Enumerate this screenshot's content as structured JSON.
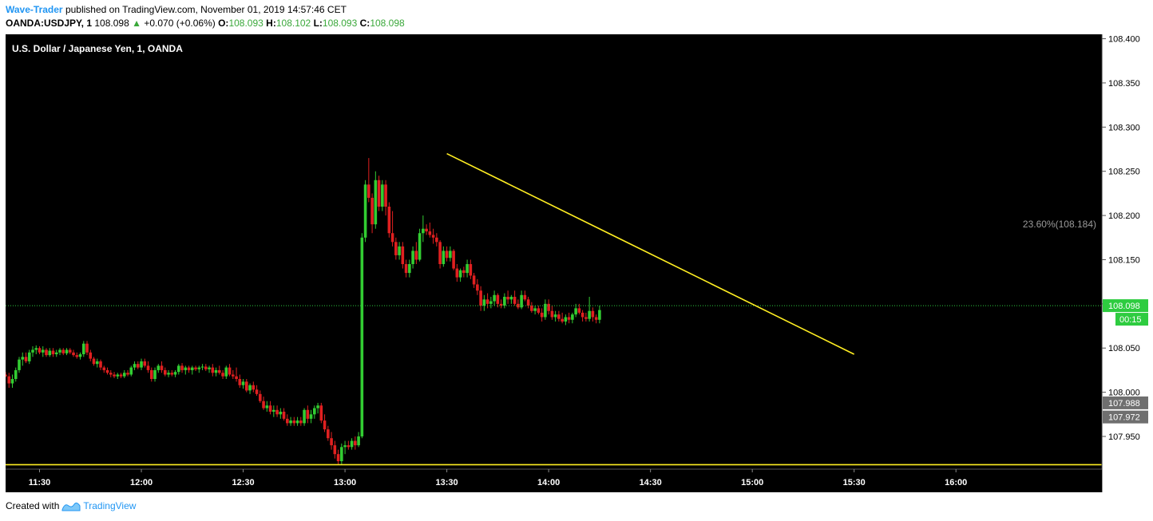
{
  "header": {
    "author": "Wave-Trader",
    "published_text": "published on TradingView.com, November 01, 2019 14:57:46 CET",
    "symbol": "OANDA:USDJPY, 1",
    "last": "108.098",
    "change": "+0.070 (+0.06%)",
    "o_label": "O:",
    "o": "108.093",
    "h_label": "H:",
    "h": "108.102",
    "l_label": "L:",
    "l": "108.093",
    "c_label": "C:",
    "c": "108.098"
  },
  "footer": {
    "created_with": "Created with",
    "brand": "TradingView"
  },
  "colors": {
    "background": "#000000",
    "up": "#32cd32",
    "down": "#e02020",
    "trendline": "#ffee22",
    "price_line": "#2ecc40",
    "axis_text": "#ffffff"
  },
  "chart_data": {
    "type": "candlestick",
    "title": "U.S. Dollar / Japanese Yen, 1, OANDA",
    "ylim": [
      107.913,
      108.405
    ],
    "y_ticks": [
      "108.400",
      "108.350",
      "108.300",
      "108.250",
      "108.200",
      "108.150",
      "108.100",
      "108.050",
      "108.000",
      "107.950"
    ],
    "x_range": [
      "11:20",
      "16:43"
    ],
    "x_ticks": [
      "11:30",
      "12:00",
      "12:30",
      "13:00",
      "13:30",
      "14:00",
      "14:30",
      "15:00",
      "15:30",
      "16:00"
    ],
    "price_label": {
      "value": "108.098",
      "countdown": "00:15"
    },
    "side_labels": [
      "107.988",
      "107.972"
    ],
    "fib_label": "23.60%(108.184)",
    "trendline": {
      "from": [
        "13:30",
        108.27
      ],
      "to": [
        "15:30",
        108.043
      ]
    },
    "horizontal_line": 107.918,
    "candles": [
      [
        "11:20",
        108.02,
        108.023,
        108.017,
        108.018
      ],
      [
        "11:21",
        108.018,
        108.022,
        108.005,
        108.01
      ],
      [
        "11:22",
        108.01,
        108.02,
        108.005,
        108.015
      ],
      [
        "11:23",
        108.015,
        108.028,
        108.012,
        108.025
      ],
      [
        "11:24",
        108.025,
        108.04,
        108.022,
        108.037
      ],
      [
        "11:25",
        108.037,
        108.045,
        108.03,
        108.04
      ],
      [
        "11:26",
        108.04,
        108.045,
        108.033,
        108.035
      ],
      [
        "11:27",
        108.035,
        108.048,
        108.032,
        108.045
      ],
      [
        "11:28",
        108.045,
        108.052,
        108.04,
        108.048
      ],
      [
        "11:29",
        108.048,
        108.053,
        108.043,
        108.05
      ],
      [
        "11:30",
        108.05,
        108.052,
        108.043,
        108.045
      ],
      [
        "11:31",
        108.045,
        108.052,
        108.04,
        108.048
      ],
      [
        "11:32",
        108.048,
        108.05,
        108.04,
        108.042
      ],
      [
        "11:33",
        108.042,
        108.05,
        108.04,
        108.047
      ],
      [
        "11:34",
        108.047,
        108.05,
        108.04,
        108.043
      ],
      [
        "11:35",
        108.043,
        108.048,
        108.04,
        108.045
      ],
      [
        "11:36",
        108.045,
        108.05,
        108.042,
        108.048
      ],
      [
        "11:37",
        108.048,
        108.05,
        108.042,
        108.044
      ],
      [
        "11:38",
        108.044,
        108.05,
        108.042,
        108.048
      ],
      [
        "11:39",
        108.048,
        108.05,
        108.043,
        108.045
      ],
      [
        "11:40",
        108.045,
        108.048,
        108.04,
        108.042
      ],
      [
        "11:41",
        108.042,
        108.045,
        108.038,
        108.04
      ],
      [
        "11:42",
        108.04,
        108.045,
        108.037,
        108.043
      ],
      [
        "11:43",
        108.043,
        108.058,
        108.04,
        108.055
      ],
      [
        "11:44",
        108.055,
        108.058,
        108.042,
        108.045
      ],
      [
        "11:45",
        108.045,
        108.048,
        108.035,
        108.038
      ],
      [
        "11:46",
        108.038,
        108.04,
        108.03,
        108.032
      ],
      [
        "11:47",
        108.032,
        108.038,
        108.028,
        108.035
      ],
      [
        "11:48",
        108.035,
        108.037,
        108.025,
        108.028
      ],
      [
        "11:49",
        108.028,
        108.03,
        108.022,
        108.025
      ],
      [
        "11:50",
        108.025,
        108.028,
        108.02,
        108.022
      ],
      [
        "11:51",
        108.022,
        108.025,
        108.017,
        108.02
      ],
      [
        "11:52",
        108.02,
        108.023,
        108.016,
        108.018
      ],
      [
        "11:53",
        108.018,
        108.022,
        108.015,
        108.02
      ],
      [
        "11:54",
        108.02,
        108.022,
        108.016,
        108.018
      ],
      [
        "11:55",
        108.018,
        108.025,
        108.016,
        108.022
      ],
      [
        "11:56",
        108.022,
        108.025,
        108.018,
        108.02
      ],
      [
        "11:57",
        108.02,
        108.03,
        108.018,
        108.028
      ],
      [
        "11:58",
        108.028,
        108.035,
        108.025,
        108.032
      ],
      [
        "11:59",
        108.032,
        108.035,
        108.026,
        108.028
      ],
      [
        "12:00",
        108.028,
        108.038,
        108.025,
        108.035
      ],
      [
        "12:01",
        108.035,
        108.038,
        108.028,
        108.03
      ],
      [
        "12:02",
        108.03,
        108.035,
        108.022,
        108.025
      ],
      [
        "12:03",
        108.025,
        108.028,
        108.012,
        108.015
      ],
      [
        "12:04",
        108.015,
        108.028,
        108.012,
        108.025
      ],
      [
        "12:05",
        108.025,
        108.032,
        108.022,
        108.03
      ],
      [
        "12:06",
        108.03,
        108.035,
        108.022,
        108.025
      ],
      [
        "12:07",
        108.025,
        108.028,
        108.018,
        108.02
      ],
      [
        "12:08",
        108.02,
        108.025,
        108.017,
        108.022
      ],
      [
        "12:09",
        108.022,
        108.025,
        108.018,
        108.02
      ],
      [
        "12:10",
        108.02,
        108.025,
        108.017,
        108.023
      ],
      [
        "12:11",
        108.023,
        108.032,
        108.02,
        108.03
      ],
      [
        "12:12",
        108.03,
        108.033,
        108.022,
        108.025
      ],
      [
        "12:13",
        108.025,
        108.03,
        108.02,
        108.028
      ],
      [
        "12:14",
        108.028,
        108.03,
        108.022,
        108.025
      ],
      [
        "12:15",
        108.025,
        108.03,
        108.02,
        108.028
      ],
      [
        "12:16",
        108.028,
        108.03,
        108.024,
        108.026
      ],
      [
        "12:17",
        108.026,
        108.03,
        108.022,
        108.028
      ],
      [
        "12:18",
        108.028,
        108.032,
        108.025,
        108.029
      ],
      [
        "12:19",
        108.029,
        108.032,
        108.024,
        108.026
      ],
      [
        "12:20",
        108.026,
        108.03,
        108.022,
        108.028
      ],
      [
        "12:21",
        108.028,
        108.032,
        108.018,
        108.022
      ],
      [
        "12:22",
        108.022,
        108.028,
        108.018,
        108.025
      ],
      [
        "12:23",
        108.025,
        108.03,
        108.02,
        108.022
      ],
      [
        "12:24",
        108.022,
        108.025,
        108.015,
        108.018
      ],
      [
        "12:25",
        108.018,
        108.03,
        108.015,
        108.028
      ],
      [
        "12:26",
        108.028,
        108.032,
        108.018,
        108.02
      ],
      [
        "12:27",
        108.02,
        108.025,
        108.015,
        108.018
      ],
      [
        "12:28",
        108.018,
        108.028,
        108.012,
        108.015
      ],
      [
        "12:29",
        108.015,
        108.02,
        108.005,
        108.008
      ],
      [
        "12:30",
        108.008,
        108.015,
        108.004,
        108.012
      ],
      [
        "12:31",
        108.012,
        108.015,
        108.0,
        108.002
      ],
      [
        "12:32",
        108.002,
        108.01,
        107.998,
        108.008
      ],
      [
        "12:33",
        108.008,
        108.012,
        108.0,
        108.003
      ],
      [
        "12:34",
        108.003,
        108.008,
        107.996,
        107.998
      ],
      [
        "12:35",
        107.998,
        108.002,
        107.988,
        107.99
      ],
      [
        "12:36",
        107.99,
        107.995,
        107.98,
        107.982
      ],
      [
        "12:37",
        107.982,
        107.99,
        107.978,
        107.985
      ],
      [
        "12:38",
        107.985,
        107.99,
        107.975,
        107.978
      ],
      [
        "12:39",
        107.978,
        107.985,
        107.972,
        107.98
      ],
      [
        "12:40",
        107.98,
        107.985,
        107.972,
        107.975
      ],
      [
        "12:41",
        107.975,
        107.982,
        107.97,
        107.978
      ],
      [
        "12:42",
        107.978,
        107.982,
        107.968,
        107.97
      ],
      [
        "12:43",
        107.97,
        107.975,
        107.962,
        107.965
      ],
      [
        "12:44",
        107.965,
        107.972,
        107.962,
        107.968
      ],
      [
        "12:45",
        107.968,
        107.972,
        107.962,
        107.965
      ],
      [
        "12:46",
        107.965,
        107.972,
        107.962,
        107.968
      ],
      [
        "12:47",
        107.968,
        107.972,
        107.962,
        107.965
      ],
      [
        "12:48",
        107.965,
        107.982,
        107.962,
        107.98
      ],
      [
        "12:49",
        107.98,
        107.985,
        107.965,
        107.97
      ],
      [
        "12:50",
        107.97,
        107.98,
        107.965,
        107.975
      ],
      [
        "12:51",
        107.975,
        107.985,
        107.97,
        107.982
      ],
      [
        "12:52",
        107.982,
        107.988,
        107.976,
        107.985
      ],
      [
        "12:53",
        107.985,
        107.988,
        107.965,
        107.968
      ],
      [
        "12:54",
        107.968,
        107.975,
        107.955,
        107.958
      ],
      [
        "12:55",
        107.958,
        107.962,
        107.945,
        107.948
      ],
      [
        "12:56",
        107.948,
        107.955,
        107.935,
        107.94
      ],
      [
        "12:57",
        107.94,
        107.945,
        107.925,
        107.93
      ],
      [
        "12:58",
        107.93,
        107.935,
        107.918,
        107.922
      ],
      [
        "12:59",
        107.922,
        107.942,
        107.918,
        107.938
      ],
      [
        "13:00",
        107.938,
        107.945,
        107.93,
        107.94
      ],
      [
        "13:01",
        107.94,
        107.945,
        107.935,
        107.938
      ],
      [
        "13:02",
        107.938,
        107.948,
        107.935,
        107.945
      ],
      [
        "13:03",
        107.945,
        107.95,
        107.935,
        107.94
      ],
      [
        "13:04",
        107.94,
        107.955,
        107.938,
        107.95
      ],
      [
        "13:05",
        107.95,
        108.18,
        107.948,
        108.175
      ],
      [
        "13:06",
        108.175,
        108.24,
        108.17,
        108.235
      ],
      [
        "13:07",
        108.235,
        108.265,
        108.215,
        108.22
      ],
      [
        "13:08",
        108.22,
        108.225,
        108.18,
        108.19
      ],
      [
        "13:09",
        108.19,
        108.25,
        108.185,
        108.24
      ],
      [
        "13:10",
        108.24,
        108.245,
        108.205,
        108.21
      ],
      [
        "13:11",
        108.21,
        108.24,
        108.205,
        108.235
      ],
      [
        "13:12",
        108.235,
        108.24,
        108.2,
        108.21
      ],
      [
        "13:13",
        108.21,
        108.215,
        108.175,
        108.18
      ],
      [
        "13:14",
        108.18,
        108.205,
        108.165,
        108.17
      ],
      [
        "13:15",
        108.17,
        108.175,
        108.15,
        108.155
      ],
      [
        "13:16",
        108.155,
        108.17,
        108.15,
        108.165
      ],
      [
        "13:17",
        108.165,
        108.17,
        108.14,
        108.145
      ],
      [
        "13:18",
        108.145,
        108.15,
        108.13,
        108.135
      ],
      [
        "13:19",
        108.135,
        108.15,
        108.13,
        108.145
      ],
      [
        "13:20",
        108.145,
        108.165,
        108.14,
        108.16
      ],
      [
        "13:21",
        108.16,
        108.17,
        108.145,
        108.15
      ],
      [
        "13:22",
        108.15,
        108.185,
        108.148,
        108.18
      ],
      [
        "13:23",
        108.18,
        108.2,
        108.17,
        108.185
      ],
      [
        "13:24",
        108.185,
        108.19,
        108.178,
        108.182
      ],
      [
        "13:25",
        108.182,
        108.192,
        108.175,
        108.178
      ],
      [
        "13:26",
        108.178,
        108.185,
        108.168,
        108.175
      ],
      [
        "13:27",
        108.175,
        108.18,
        108.165,
        108.17
      ],
      [
        "13:28",
        108.17,
        108.172,
        108.14,
        108.145
      ],
      [
        "13:29",
        108.145,
        108.165,
        108.142,
        108.16
      ],
      [
        "13:30",
        108.16,
        108.165,
        108.148,
        108.152
      ],
      [
        "13:31",
        108.152,
        108.165,
        108.148,
        108.16
      ],
      [
        "13:32",
        108.16,
        108.162,
        108.138,
        108.14
      ],
      [
        "13:33",
        108.14,
        108.145,
        108.125,
        108.13
      ],
      [
        "13:34",
        108.13,
        108.14,
        108.125,
        108.138
      ],
      [
        "13:35",
        108.138,
        108.142,
        108.13,
        108.135
      ],
      [
        "13:36",
        108.135,
        108.15,
        108.13,
        108.145
      ],
      [
        "13:37",
        108.145,
        108.15,
        108.128,
        108.132
      ],
      [
        "13:38",
        108.132,
        108.135,
        108.118,
        108.122
      ],
      [
        "13:39",
        108.122,
        108.128,
        108.11,
        108.115
      ],
      [
        "13:40",
        108.115,
        108.12,
        108.092,
        108.098
      ],
      [
        "13:41",
        108.098,
        108.11,
        108.092,
        108.105
      ],
      [
        "13:42",
        108.105,
        108.112,
        108.095,
        108.1
      ],
      [
        "13:43",
        108.1,
        108.108,
        108.095,
        108.103
      ],
      [
        "13:44",
        108.103,
        108.115,
        108.098,
        108.11
      ],
      [
        "13:45",
        108.11,
        108.112,
        108.096,
        108.1
      ],
      [
        "13:46",
        108.1,
        108.105,
        108.095,
        108.098
      ],
      [
        "13:47",
        108.098,
        108.112,
        108.095,
        108.108
      ],
      [
        "13:48",
        108.108,
        108.115,
        108.1,
        108.105
      ],
      [
        "13:49",
        108.105,
        108.11,
        108.1,
        108.108
      ],
      [
        "13:50",
        108.108,
        108.115,
        108.098,
        108.1
      ],
      [
        "13:51",
        108.1,
        108.105,
        108.094,
        108.096
      ],
      [
        "13:52",
        108.096,
        108.115,
        108.094,
        108.11
      ],
      [
        "13:53",
        108.11,
        108.115,
        108.103,
        108.105
      ],
      [
        "13:54",
        108.105,
        108.108,
        108.095,
        108.098
      ],
      [
        "13:55",
        108.098,
        108.102,
        108.09,
        108.092
      ],
      [
        "13:56",
        108.092,
        108.098,
        108.088,
        108.095
      ],
      [
        "13:57",
        108.095,
        108.098,
        108.088,
        108.09
      ],
      [
        "13:58",
        108.09,
        108.095,
        108.08,
        108.085
      ],
      [
        "13:59",
        108.085,
        108.105,
        108.082,
        108.1
      ],
      [
        "14:00",
        108.1,
        108.105,
        108.088,
        108.092
      ],
      [
        "14:01",
        108.092,
        108.098,
        108.082,
        108.085
      ],
      [
        "14:02",
        108.085,
        108.092,
        108.08,
        108.088
      ],
      [
        "14:03",
        108.088,
        108.092,
        108.08,
        108.083
      ],
      [
        "14:04",
        108.083,
        108.09,
        108.078,
        108.08
      ],
      [
        "14:05",
        108.08,
        108.088,
        108.076,
        108.085
      ],
      [
        "14:06",
        108.085,
        108.09,
        108.078,
        108.082
      ],
      [
        "14:07",
        108.082,
        108.09,
        108.078,
        108.088
      ],
      [
        "14:08",
        108.088,
        108.1,
        108.085,
        108.095
      ],
      [
        "14:09",
        108.095,
        108.1,
        108.088,
        108.09
      ],
      [
        "14:10",
        108.09,
        108.093,
        108.08,
        108.085
      ],
      [
        "14:11",
        108.085,
        108.09,
        108.08,
        108.083
      ],
      [
        "14:12",
        108.083,
        108.108,
        108.08,
        108.092
      ],
      [
        "14:13",
        108.092,
        108.096,
        108.08,
        108.085
      ],
      [
        "14:14",
        108.085,
        108.088,
        108.078,
        108.082
      ],
      [
        "14:15",
        108.082,
        108.098,
        108.078,
        108.093
      ]
    ]
  }
}
